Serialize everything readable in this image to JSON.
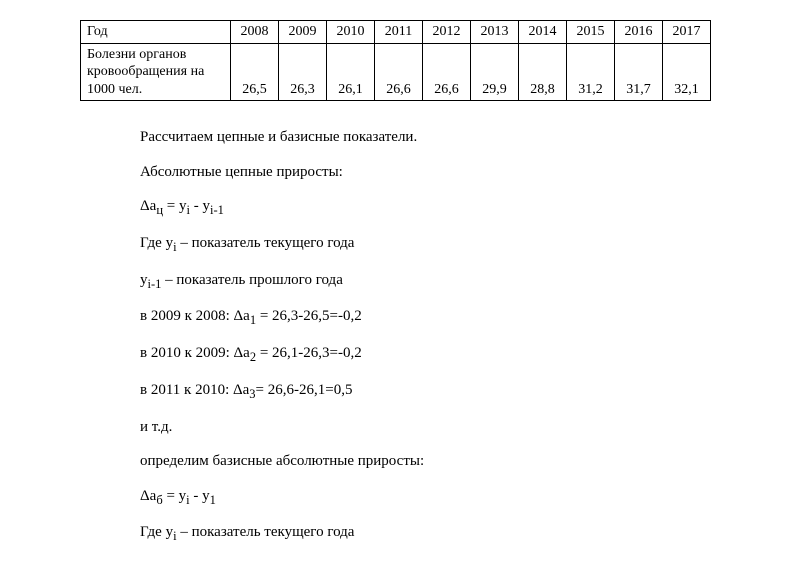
{
  "table": {
    "row1_label": "Год",
    "years": [
      "2008",
      "2009",
      "2010",
      "2011",
      "2012",
      "2013",
      "2014",
      "2015",
      "2016",
      "2017"
    ],
    "row2_label": "Болезни органов кровообращения на 1000 чел.",
    "values": [
      "26,5",
      "26,3",
      "26,1",
      "26,6",
      "26,6",
      "29,9",
      "28,8",
      "31,2",
      "31,7",
      "32,1"
    ]
  },
  "lines": {
    "l1": "Рассчитаем цепные и базисные показатели.",
    "l2": "Абсолютные цепные приросты:",
    "l3": "Δaц = yi - yi-1",
    "l4": "Где уi – показатель текущего года",
    "l5": "уi-1 – показатель прошлого года",
    "l6": "в 2009 к 2008:  Δa1 = 26,3-26,5=-0,2",
    "l7": "в 2010 к 2009: Δa2 = 26,1-26,3=-0,2",
    "l8": "в 2011 к 2010: Δa3= 26,6-26,1=0,5",
    "l9": "и т.д.",
    "l10": "определим базисные абсолютные приросты:",
    "l11": "Δaб = yi - y1",
    "l12": "Где уi – показатель текущего года"
  },
  "formula_parts": {
    "f3_a": "Δa",
    "f3_sub_ts": "ц",
    "f3_b": " = y",
    "f3_sub_i": "i",
    "f3_c": " - y",
    "f3_sub_im1": "i-1",
    "f4_a": "Где у",
    "f4_sub_i": "i",
    "f4_b": " – показатель текущего года",
    "f5_a": "у",
    "f5_sub_im1": "i-1",
    "f5_b": " – показатель прошлого года",
    "f6_a": "в 2009 к 2008:  Δa",
    "f6_sub": "1",
    "f6_b": " = 26,3-26,5=-0,2",
    "f7_a": "в 2010 к 2009: Δa",
    "f7_sub": "2",
    "f7_b": " = 26,1-26,3=-0,2",
    "f8_a": "в 2011 к 2010: Δa",
    "f8_sub": "3",
    "f8_b": "= 26,6-26,1=0,5",
    "f11_a": "Δa",
    "f11_sub_b": "б",
    "f11_b": " = y",
    "f11_sub_i": "i",
    "f11_c": " - y",
    "f11_sub_1": "1",
    "f12_a": "Где у",
    "f12_sub_i": "i",
    "f12_b": " – показатель текущего года"
  }
}
